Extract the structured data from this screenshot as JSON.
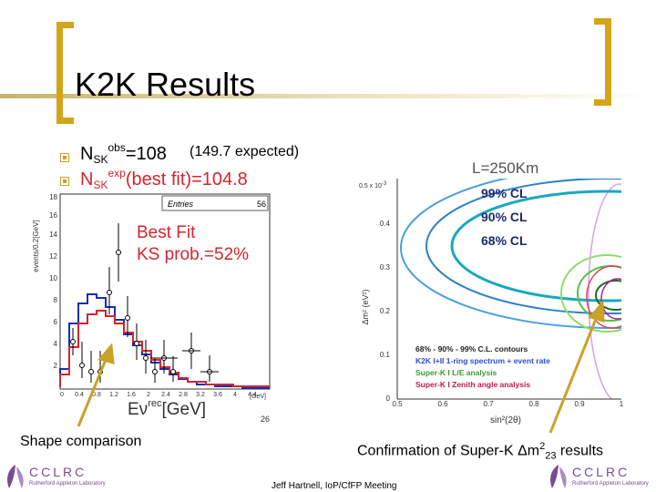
{
  "slide": {
    "title": "K2K Results",
    "bullet1": {
      "label": "N",
      "sub": "SK",
      "sup": "obs",
      "value": "=108",
      "note": "(149.7 expected)"
    },
    "bullet2": {
      "label": "N",
      "sub": "SK",
      "sup": "exp",
      "value": "(best fit)=104.8"
    }
  },
  "left_plot": {
    "ylabel": "events/0.2[GeV]",
    "legend_entries_label": "Entries",
    "legend_entries_value": "56",
    "annotation_line1": "Best Fit",
    "annotation_line2": "KS prob.=52%",
    "xlabel_prefix": "Eν",
    "xlabel_sup": "rec",
    "xlabel_suffix": "[GeV]",
    "x_unit": "[GeV]",
    "page_mark": "26",
    "x_ticks": [
      "0",
      "0.4",
      "0.8",
      "1.2",
      "1.6",
      "2",
      "2.4",
      "2.8",
      "3.2",
      "3.6",
      "4",
      "4.4"
    ],
    "y_ticks": [
      "2",
      "4",
      "6",
      "8",
      "10",
      "12",
      "14",
      "16",
      "18"
    ]
  },
  "right_plot": {
    "scale_label": "L=250Km",
    "exp_label": "0.5 x 10",
    "exp_sup": "-3",
    "cl99": "99% CL",
    "cl90": "90% CL",
    "cl68": "68% CL",
    "ylabel": "Δm² (eV²)",
    "xlabel": "sin²(2θ)",
    "x_ticks": [
      "0.5",
      "0.6",
      "0.7",
      "0.8",
      "0.9",
      "1"
    ],
    "y_ticks": [
      "0",
      "0.1",
      "0.2",
      "0.3",
      "0.4"
    ],
    "legend": [
      "68% - 90% - 99% C.L. contours",
      "K2K I+II    1-ring spectrum + event rate",
      "Super-K I  L/E analysis",
      "Super-K I  Zenith angle analysis"
    ]
  },
  "captions": {
    "left": "Shape comparison",
    "right_prefix": "Confirmation of Super-K Δm",
    "right_sup": "2",
    "right_sub": "23",
    "right_suffix": "results"
  },
  "footer": {
    "logo_text": "CCLRC",
    "logo_sub": "Rutherford Appleton Laboratory",
    "center": "Jeff Hartnell, IoP/CfFP Meeting"
  },
  "colors": {
    "accent": "#d4a419",
    "red": "#d4252d",
    "blue": "#1a2db8",
    "logo_purple": "#7a4b91"
  }
}
